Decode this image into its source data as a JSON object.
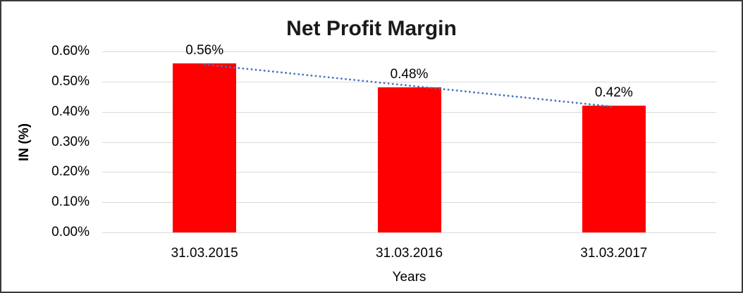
{
  "frame": {
    "background": "#ffffff",
    "border_color": "#3a3a3a"
  },
  "chart_data": {
    "type": "bar",
    "title": "Net Profit Margin",
    "xlabel": "Years",
    "ylabel": "IN (%)",
    "categories": [
      "31.03.2015",
      "31.03.2016",
      "31.03.2017"
    ],
    "values": [
      0.56,
      0.48,
      0.42
    ],
    "unit": "%",
    "data_labels": [
      "0.56%",
      "0.48%",
      "0.42%"
    ],
    "yticks": [
      {
        "value": 0.0,
        "label": "0.00%"
      },
      {
        "value": 0.1,
        "label": "0.10%"
      },
      {
        "value": 0.2,
        "label": "0.20%"
      },
      {
        "value": 0.3,
        "label": "0.30%"
      },
      {
        "value": 0.4,
        "label": "0.40%"
      },
      {
        "value": 0.5,
        "label": "0.50%"
      },
      {
        "value": 0.6,
        "label": "0.60%"
      }
    ],
    "ylim": [
      0,
      0.6
    ],
    "grid": true,
    "legend": false,
    "trendline": {
      "type": "linear",
      "style": "dotted"
    },
    "colors": {
      "bar": "#FF0000",
      "trendline": "#4472C4",
      "gridline": "#D9D9D9",
      "text": "#000000",
      "title": "#1a1a1a"
    }
  }
}
